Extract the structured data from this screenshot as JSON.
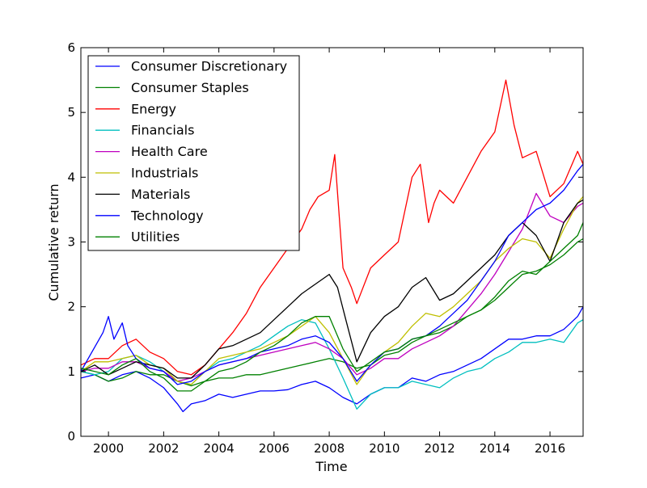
{
  "chart_data": {
    "type": "line",
    "title": "",
    "xlabel": "Time",
    "ylabel": "Cumulative return",
    "xlim": [
      1999.0,
      2017.2
    ],
    "ylim": [
      0,
      6
    ],
    "xticks": [
      2000,
      2002,
      2004,
      2006,
      2008,
      2010,
      2012,
      2014,
      2016
    ],
    "yticks": [
      0,
      1,
      2,
      3,
      4,
      5,
      6
    ],
    "grid": false,
    "legend_position": "upper-left",
    "series": [
      {
        "name": "Consumer Discretionary",
        "color": "#0000ff",
        "x": [
          1999.0,
          1999.5,
          2000.0,
          2000.5,
          2001.0,
          2001.5,
          2002.0,
          2002.5,
          2002.7,
          2003.0,
          2003.5,
          2004.0,
          2004.5,
          2005.0,
          2005.5,
          2006.0,
          2006.5,
          2007.0,
          2007.5,
          2008.0,
          2008.5,
          2009.0,
          2009.5,
          2010.0,
          2010.5,
          2011.0,
          2011.5,
          2012.0,
          2012.5,
          2013.0,
          2013.5,
          2014.0,
          2014.5,
          2015.0,
          2015.5,
          2016.0,
          2016.5,
          2017.0,
          2017.2
        ],
        "y": [
          0.9,
          0.95,
          0.85,
          0.95,
          1.0,
          0.9,
          0.75,
          0.5,
          0.38,
          0.5,
          0.55,
          0.65,
          0.6,
          0.65,
          0.7,
          0.7,
          0.72,
          0.8,
          0.85,
          0.75,
          0.6,
          0.5,
          0.65,
          0.75,
          0.75,
          0.9,
          0.85,
          0.95,
          1.0,
          1.1,
          1.2,
          1.35,
          1.5,
          1.5,
          1.55,
          1.55,
          1.65,
          1.85,
          2.0
        ]
      },
      {
        "name": "Consumer Staples",
        "color": "#008000",
        "x": [
          1999.0,
          1999.5,
          2000.0,
          2000.5,
          2001.0,
          2001.5,
          2002.0,
          2002.5,
          2003.0,
          2003.5,
          2004.0,
          2004.5,
          2005.0,
          2005.5,
          2006.0,
          2006.5,
          2007.0,
          2007.5,
          2008.0,
          2008.5,
          2009.0,
          2009.5,
          2010.0,
          2010.5,
          2011.0,
          2011.5,
          2012.0,
          2012.5,
          2013.0,
          2013.5,
          2014.0,
          2014.5,
          2015.0,
          2015.5,
          2016.0,
          2016.5,
          2017.0,
          2017.2
        ],
        "y": [
          1.0,
          0.95,
          0.85,
          0.9,
          1.0,
          0.95,
          0.95,
          0.85,
          0.78,
          0.85,
          0.9,
          0.9,
          0.95,
          0.95,
          1.0,
          1.05,
          1.1,
          1.15,
          1.2,
          1.15,
          1.05,
          1.1,
          1.25,
          1.3,
          1.45,
          1.55,
          1.6,
          1.7,
          1.85,
          1.95,
          2.1,
          2.3,
          2.5,
          2.55,
          2.65,
          2.8,
          3.0,
          3.05
        ]
      },
      {
        "name": "Energy",
        "color": "#ff0000",
        "x": [
          1999.0,
          1999.5,
          2000.0,
          2000.5,
          2001.0,
          2001.5,
          2002.0,
          2002.5,
          2003.0,
          2003.5,
          2004.0,
          2004.5,
          2005.0,
          2005.5,
          2006.0,
          2006.5,
          2007.0,
          2007.3,
          2007.6,
          2008.0,
          2008.2,
          2008.5,
          2008.8,
          2009.0,
          2009.5,
          2010.0,
          2010.5,
          2011.0,
          2011.3,
          2011.6,
          2011.8,
          2012.0,
          2012.5,
          2013.0,
          2013.5,
          2014.0,
          2014.4,
          2014.7,
          2015.0,
          2015.5,
          2016.0,
          2016.5,
          2017.0,
          2017.2
        ],
        "y": [
          1.1,
          1.2,
          1.2,
          1.4,
          1.5,
          1.3,
          1.2,
          1.0,
          0.95,
          1.1,
          1.35,
          1.6,
          1.9,
          2.3,
          2.6,
          2.9,
          3.2,
          3.5,
          3.7,
          3.8,
          4.35,
          2.6,
          2.3,
          2.05,
          2.6,
          2.8,
          3.0,
          4.0,
          4.2,
          3.3,
          3.6,
          3.8,
          3.6,
          4.0,
          4.4,
          4.7,
          5.5,
          4.8,
          4.3,
          4.4,
          3.7,
          3.9,
          4.4,
          4.2
        ]
      },
      {
        "name": "Financials",
        "color": "#00bfbf",
        "x": [
          1999.0,
          1999.5,
          2000.0,
          2000.5,
          2001.0,
          2001.5,
          2002.0,
          2002.5,
          2003.0,
          2003.5,
          2004.0,
          2004.5,
          2005.0,
          2005.5,
          2006.0,
          2006.5,
          2007.0,
          2007.5,
          2008.0,
          2008.5,
          2009.0,
          2009.5,
          2010.0,
          2010.5,
          2011.0,
          2011.5,
          2012.0,
          2012.5,
          2013.0,
          2013.5,
          2014.0,
          2014.5,
          2015.0,
          2015.5,
          2016.0,
          2016.5,
          2017.0,
          2017.2
        ],
        "y": [
          1.0,
          0.95,
          1.0,
          1.2,
          1.25,
          1.15,
          1.0,
          0.85,
          0.8,
          1.0,
          1.15,
          1.2,
          1.3,
          1.4,
          1.55,
          1.7,
          1.8,
          1.75,
          1.35,
          0.9,
          0.42,
          0.65,
          0.75,
          0.75,
          0.85,
          0.8,
          0.75,
          0.9,
          1.0,
          1.05,
          1.2,
          1.3,
          1.45,
          1.45,
          1.5,
          1.45,
          1.75,
          1.8
        ]
      },
      {
        "name": "Health Care",
        "color": "#bf00bf",
        "x": [
          1999.0,
          1999.5,
          2000.0,
          2000.5,
          2001.0,
          2001.5,
          2002.0,
          2002.5,
          2003.0,
          2003.5,
          2004.0,
          2004.5,
          2005.0,
          2005.5,
          2006.0,
          2006.5,
          2007.0,
          2007.5,
          2008.0,
          2008.5,
          2009.0,
          2009.5,
          2010.0,
          2010.5,
          2011.0,
          2011.5,
          2012.0,
          2012.5,
          2013.0,
          2013.5,
          2014.0,
          2014.5,
          2015.0,
          2015.5,
          2016.0,
          2016.5,
          2017.0,
          2017.2
        ],
        "y": [
          1.0,
          1.05,
          1.05,
          1.15,
          1.15,
          1.05,
          1.0,
          0.85,
          0.9,
          1.0,
          1.1,
          1.15,
          1.2,
          1.25,
          1.3,
          1.35,
          1.4,
          1.45,
          1.35,
          1.2,
          0.95,
          1.05,
          1.2,
          1.2,
          1.35,
          1.45,
          1.55,
          1.7,
          1.95,
          2.2,
          2.5,
          2.85,
          3.2,
          3.75,
          3.4,
          3.3,
          3.55,
          3.6
        ]
      },
      {
        "name": "Industrials",
        "color": "#bfbf00",
        "x": [
          1999.0,
          1999.5,
          2000.0,
          2000.5,
          2001.0,
          2001.5,
          2002.0,
          2002.5,
          2003.0,
          2003.5,
          2004.0,
          2004.5,
          2005.0,
          2005.5,
          2006.0,
          2006.5,
          2007.0,
          2007.5,
          2008.0,
          2008.5,
          2009.0,
          2009.5,
          2010.0,
          2010.5,
          2011.0,
          2011.5,
          2012.0,
          2012.5,
          2013.0,
          2013.5,
          2014.0,
          2014.5,
          2015.0,
          2015.5,
          2016.0,
          2016.5,
          2017.0,
          2017.2
        ],
        "y": [
          1.0,
          1.15,
          1.15,
          1.2,
          1.25,
          1.1,
          1.05,
          0.85,
          0.8,
          1.0,
          1.2,
          1.25,
          1.3,
          1.35,
          1.45,
          1.55,
          1.7,
          1.85,
          1.6,
          1.2,
          0.8,
          1.1,
          1.3,
          1.45,
          1.7,
          1.9,
          1.85,
          2.0,
          2.2,
          2.4,
          2.7,
          2.9,
          3.05,
          3.0,
          2.75,
          3.2,
          3.6,
          3.7
        ]
      },
      {
        "name": "Materials",
        "color": "#000000",
        "x": [
          1999.0,
          1999.5,
          2000.0,
          2000.5,
          2001.0,
          2001.5,
          2002.0,
          2002.5,
          2003.0,
          2003.5,
          2004.0,
          2004.5,
          2005.0,
          2005.5,
          2006.0,
          2006.5,
          2007.0,
          2007.5,
          2008.0,
          2008.3,
          2008.6,
          2009.0,
          2009.5,
          2010.0,
          2010.5,
          2011.0,
          2011.5,
          2012.0,
          2012.5,
          2013.0,
          2013.5,
          2014.0,
          2014.5,
          2015.0,
          2015.5,
          2016.0,
          2016.5,
          2017.0,
          2017.2
        ],
        "y": [
          1.0,
          1.1,
          0.95,
          1.05,
          1.15,
          1.1,
          1.05,
          0.9,
          0.9,
          1.1,
          1.35,
          1.4,
          1.5,
          1.6,
          1.8,
          2.0,
          2.2,
          2.35,
          2.5,
          2.3,
          1.8,
          1.15,
          1.6,
          1.85,
          2.0,
          2.3,
          2.45,
          2.1,
          2.2,
          2.4,
          2.6,
          2.8,
          3.1,
          3.3,
          3.1,
          2.7,
          3.3,
          3.6,
          3.65
        ]
      },
      {
        "name": "Technology",
        "color": "#0000ff",
        "x": [
          1999.0,
          1999.4,
          1999.8,
          2000.0,
          2000.2,
          2000.5,
          2000.7,
          2001.0,
          2001.5,
          2002.0,
          2002.5,
          2003.0,
          2003.5,
          2004.0,
          2004.5,
          2005.0,
          2005.5,
          2006.0,
          2006.5,
          2007.0,
          2007.5,
          2008.0,
          2008.5,
          2009.0,
          2009.5,
          2010.0,
          2010.5,
          2011.0,
          2011.5,
          2012.0,
          2012.5,
          2013.0,
          2013.5,
          2014.0,
          2014.5,
          2015.0,
          2015.5,
          2016.0,
          2016.5,
          2017.0,
          2017.2
        ],
        "y": [
          1.0,
          1.3,
          1.6,
          1.85,
          1.5,
          1.75,
          1.4,
          1.2,
          1.05,
          1.0,
          0.8,
          0.85,
          1.0,
          1.1,
          1.15,
          1.2,
          1.3,
          1.35,
          1.4,
          1.5,
          1.55,
          1.45,
          1.2,
          0.85,
          1.1,
          1.3,
          1.35,
          1.5,
          1.55,
          1.7,
          1.9,
          2.1,
          2.4,
          2.7,
          3.1,
          3.3,
          3.5,
          3.6,
          3.8,
          4.1,
          4.2
        ]
      },
      {
        "name": "Utilities",
        "color": "#008000",
        "x": [
          1999.0,
          1999.5,
          2000.0,
          2000.5,
          2001.0,
          2001.5,
          2002.0,
          2002.5,
          2003.0,
          2003.5,
          2004.0,
          2004.5,
          2005.0,
          2005.5,
          2006.0,
          2006.5,
          2007.0,
          2007.5,
          2008.0,
          2008.5,
          2009.0,
          2009.5,
          2010.0,
          2010.5,
          2011.0,
          2011.5,
          2012.0,
          2012.5,
          2013.0,
          2013.5,
          2014.0,
          2014.5,
          2015.0,
          2015.5,
          2016.0,
          2016.5,
          2017.0,
          2017.2
        ],
        "y": [
          1.05,
          1.0,
          0.95,
          1.1,
          1.2,
          1.0,
          0.9,
          0.7,
          0.7,
          0.85,
          1.0,
          1.05,
          1.15,
          1.3,
          1.4,
          1.55,
          1.75,
          1.85,
          1.85,
          1.35,
          1.0,
          1.15,
          1.3,
          1.35,
          1.5,
          1.55,
          1.65,
          1.75,
          1.85,
          1.95,
          2.15,
          2.4,
          2.55,
          2.5,
          2.7,
          2.9,
          3.1,
          3.3
        ]
      }
    ]
  }
}
